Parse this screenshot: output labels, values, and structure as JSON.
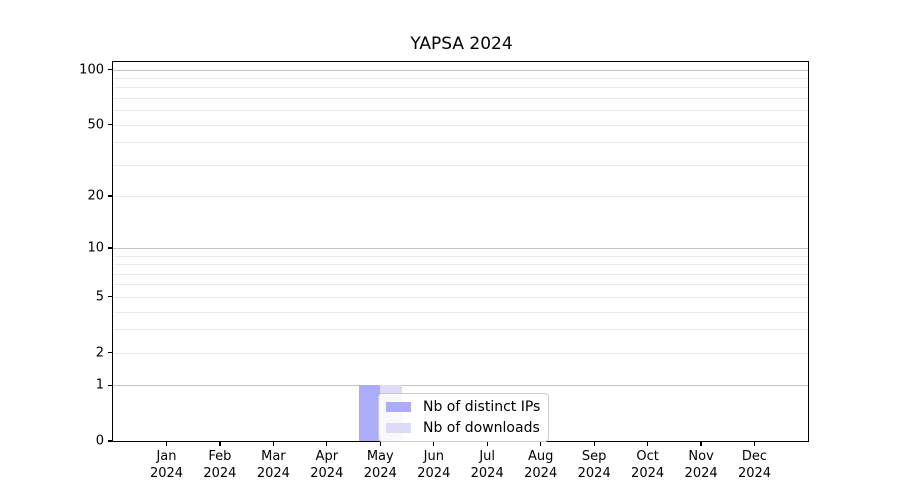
{
  "chart_data": {
    "type": "bar",
    "title": "YAPSA 2024",
    "categories": [
      "Jan",
      "Feb",
      "Mar",
      "Apr",
      "May",
      "Jun",
      "Jul",
      "Aug",
      "Sep",
      "Oct",
      "Nov",
      "Dec"
    ],
    "category_year": "2024",
    "series": [
      {
        "name": "Nb of distinct IPs",
        "color": "#acacf8",
        "values": [
          0,
          0,
          0,
          0,
          1,
          0,
          0,
          0,
          0,
          0,
          0,
          0
        ]
      },
      {
        "name": "Nb of downloads",
        "color": "#dcdcf6",
        "values": [
          0,
          0,
          0,
          0,
          1,
          0,
          0,
          0,
          0,
          0,
          0,
          0
        ]
      }
    ],
    "y_scale": "log1p",
    "ylim": [
      0,
      110
    ],
    "y_ticks": [
      100,
      50,
      20,
      10,
      5,
      2,
      1,
      0
    ],
    "y_major_gridlines": [
      100,
      10,
      1
    ],
    "y_minor_gridlines": [
      90,
      80,
      70,
      60,
      50,
      40,
      30,
      20,
      9,
      8,
      7,
      6,
      5,
      4,
      3,
      2
    ],
    "grid": "horizontal-only",
    "legend_position": "inside-bottom-center",
    "bar_width_fraction": 0.8
  },
  "colors": {
    "background": "#ffffff",
    "axis_border": "#000000",
    "grid_major": "#c4c4c4",
    "grid_minor": "#eaeaea",
    "legend_border": "#cccccc",
    "text": "#000000"
  }
}
